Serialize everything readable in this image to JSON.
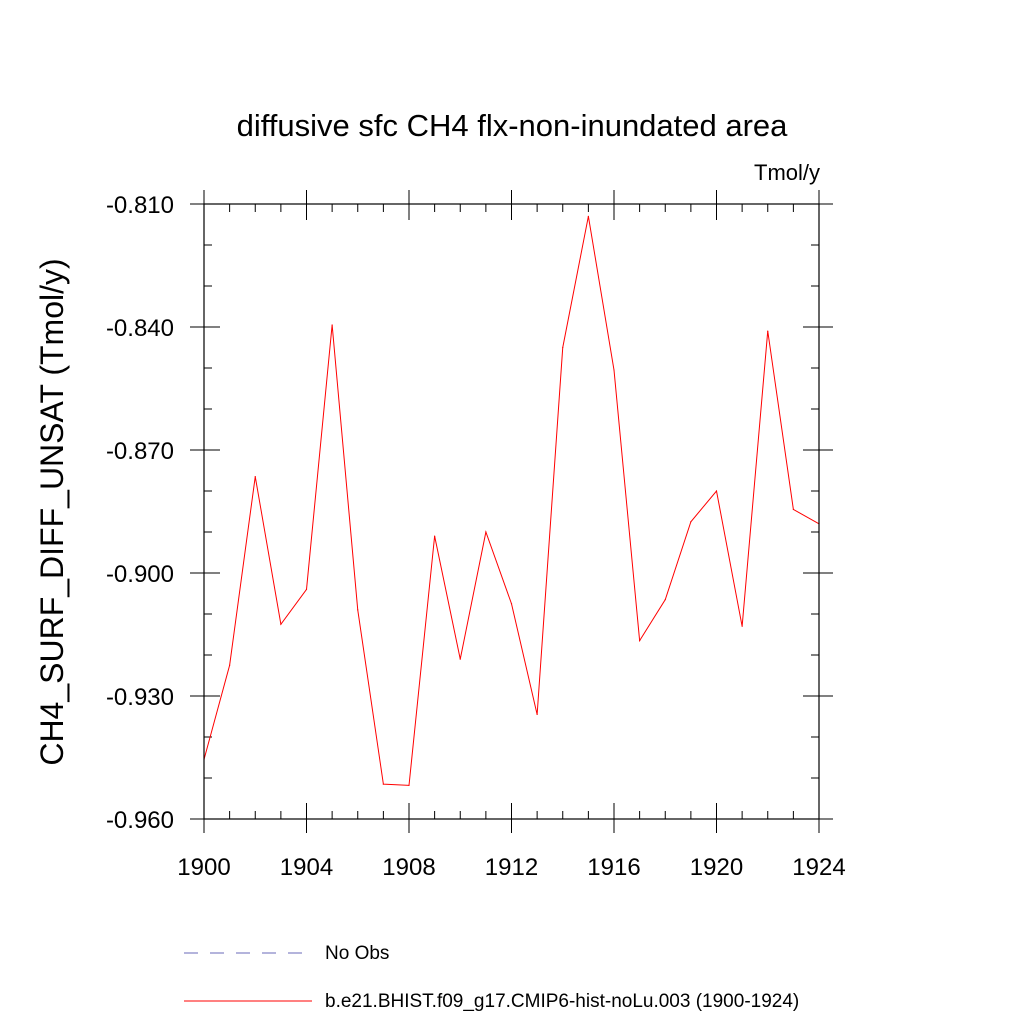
{
  "chart_data": {
    "type": "line",
    "title": "diffusive sfc CH4 flx-non-inundated area",
    "units_label": "Tmol/y",
    "ylabel": "CH4_SURF_DIFF_UNSAT  (Tmol/y)",
    "xlabel": "",
    "xlim": [
      1900,
      1924
    ],
    "ylim": [
      -0.96,
      -0.81
    ],
    "x_ticks": [
      1900,
      1904,
      1908,
      1912,
      1916,
      1920,
      1924
    ],
    "x_tick_labels": [
      "1900",
      "1904",
      "1908",
      "1912",
      "1916",
      "1920",
      "1924"
    ],
    "y_ticks": [
      -0.81,
      -0.84,
      -0.87,
      -0.9,
      -0.93,
      -0.96
    ],
    "y_tick_labels": [
      "-0.810",
      "-0.840",
      "-0.870",
      "-0.900",
      "-0.930",
      "-0.960"
    ],
    "x_minor_step": 1,
    "y_minor_step": 0.01,
    "grid": false,
    "series": [
      {
        "name": "b.e21.BHIST.f09_g17.CMIP6-hist-noLu.003 (1900-1924)",
        "color": "#ff0000",
        "style": "solid",
        "x": [
          1900,
          1901,
          1902,
          1903,
          1904,
          1905,
          1906,
          1907,
          1908,
          1909,
          1910,
          1911,
          1912,
          1913,
          1914,
          1915,
          1916,
          1917,
          1918,
          1919,
          1920,
          1921,
          1922,
          1923,
          1924
        ],
        "values": [
          -0.9455,
          -0.9225,
          -0.8765,
          -0.9125,
          -0.904,
          -0.8395,
          -0.909,
          -0.9515,
          -0.9518,
          -0.891,
          -0.921,
          -0.89,
          -0.9075,
          -0.9345,
          -0.845,
          -0.813,
          -0.8505,
          -0.9165,
          -0.9065,
          -0.8875,
          -0.88,
          -0.913,
          -0.841,
          -0.8845,
          -0.888
        ]
      }
    ],
    "legend": {
      "placement": "bottom",
      "entries": [
        {
          "label": "No Obs",
          "color": "#6a6ab8",
          "style": "dashed"
        },
        {
          "label": "b.e21.BHIST.f09_g17.CMIP6-hist-noLu.003 (1900-1924)",
          "color": "#ff0000",
          "style": "solid"
        }
      ]
    }
  }
}
